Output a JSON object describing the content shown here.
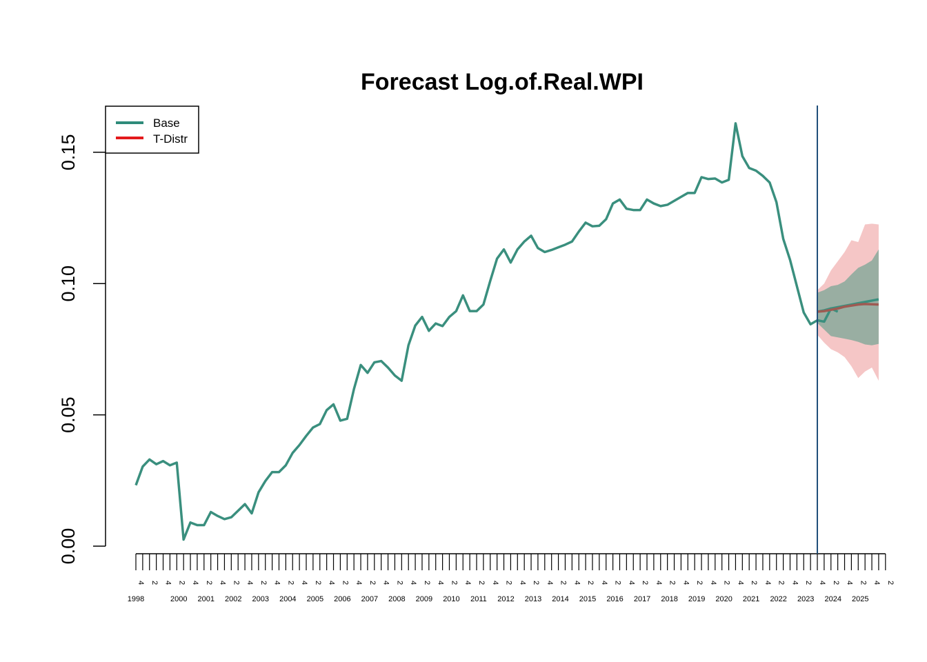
{
  "chart_data": {
    "type": "line",
    "title": "Forecast Log.of.Real.WPI",
    "xlabel": "",
    "ylabel": "",
    "ylim": [
      0,
      0.17
    ],
    "yticks": [
      0.0,
      0.05,
      0.1,
      0.15
    ],
    "ytick_labels": [
      "0.00",
      "0.05",
      "0.10",
      "0.15"
    ],
    "x_start": {
      "year": 1998,
      "quarter": 4
    },
    "quarter_labels": [
      "4",
      "2"
    ],
    "year_labels": [
      "1998",
      "2000",
      "2001",
      "2002",
      "2003",
      "2004",
      "2005",
      "2006",
      "2007",
      "2008",
      "2009",
      "2010",
      "2011",
      "2012",
      "2013",
      "2014",
      "2015",
      "2016",
      "2017",
      "2018",
      "2019",
      "2020",
      "2021",
      "2022",
      "2023",
      "2024",
      "2025"
    ],
    "legend": {
      "position": "top-left",
      "entries": [
        {
          "label": "Base",
          "color": "#2e8b7a"
        },
        {
          "label": "T-Distr",
          "color": "#e31a1c"
        }
      ]
    },
    "forecast_start_index": 100,
    "series": [
      {
        "name": "Base",
        "color": "#3a8f7e",
        "values": [
          0.0232,
          0.0303,
          0.033,
          0.0312,
          0.0324,
          0.0308,
          0.0318,
          0.0025,
          0.009,
          0.008,
          0.008,
          0.013,
          0.0115,
          0.0103,
          0.011,
          0.0135,
          0.016,
          0.0125,
          0.0205,
          0.0248,
          0.0282,
          0.0282,
          0.0308,
          0.0355,
          0.0385,
          0.042,
          0.0452,
          0.0465,
          0.0518,
          0.054,
          0.0478,
          0.0485,
          0.0598,
          0.069,
          0.066,
          0.07,
          0.0705,
          0.068,
          0.065,
          0.063,
          0.0765,
          0.084,
          0.0873,
          0.082,
          0.0848,
          0.0838,
          0.0873,
          0.0895,
          0.0955,
          0.0895,
          0.0895,
          0.092,
          0.101,
          0.1095,
          0.113,
          0.108,
          0.113,
          0.116,
          0.1182,
          0.1135,
          0.112,
          0.1128,
          0.1138,
          0.1148,
          0.116,
          0.1198,
          0.1232,
          0.1218,
          0.122,
          0.1245,
          0.1305,
          0.132,
          0.1285,
          0.128,
          0.128,
          0.132,
          0.1305,
          0.1295,
          0.13,
          0.1315,
          0.133,
          0.1345,
          0.1345,
          0.1405,
          0.1398,
          0.14,
          0.1385,
          0.1395,
          0.161,
          0.1485,
          0.144,
          0.143,
          0.141,
          0.1385,
          0.131,
          0.117,
          0.109,
          0.099,
          0.089,
          0.0845,
          0.086,
          0.0855,
          0.0905,
          0.0893
        ]
      },
      {
        "name": "Base forecast",
        "color": "#3a8f7e",
        "x_start_index": 100,
        "values": [
          0.0893,
          0.0898,
          0.0905,
          0.091,
          0.0915,
          0.092,
          0.0925,
          0.093,
          0.0935,
          0.094
        ]
      },
      {
        "name": "T-Distr forecast",
        "color": "#9e5a52",
        "x_start_index": 100,
        "values": [
          0.0893,
          0.0895,
          0.09,
          0.0905,
          0.0912,
          0.0916,
          0.092,
          0.0922,
          0.0921,
          0.092
        ]
      }
    ],
    "bands": [
      {
        "name": "T-Distr interval",
        "color": "#f2b3b3",
        "x_start_index": 100,
        "upper": [
          0.0975,
          0.1,
          0.105,
          0.1085,
          0.112,
          0.1165,
          0.1158,
          0.1225,
          0.1228,
          0.1225
        ],
        "lower": [
          0.0805,
          0.0775,
          0.075,
          0.0738,
          0.072,
          0.0685,
          0.064,
          0.0665,
          0.068,
          0.063
        ]
      },
      {
        "name": "Base interval",
        "color": "#7aa595",
        "x_start_index": 100,
        "upper": [
          0.0965,
          0.0975,
          0.099,
          0.0995,
          0.1008,
          0.1035,
          0.106,
          0.1072,
          0.1088,
          0.113
        ],
        "lower": [
          0.085,
          0.0825,
          0.08,
          0.0795,
          0.079,
          0.0785,
          0.0778,
          0.0768,
          0.0765,
          0.077
        ]
      }
    ]
  }
}
